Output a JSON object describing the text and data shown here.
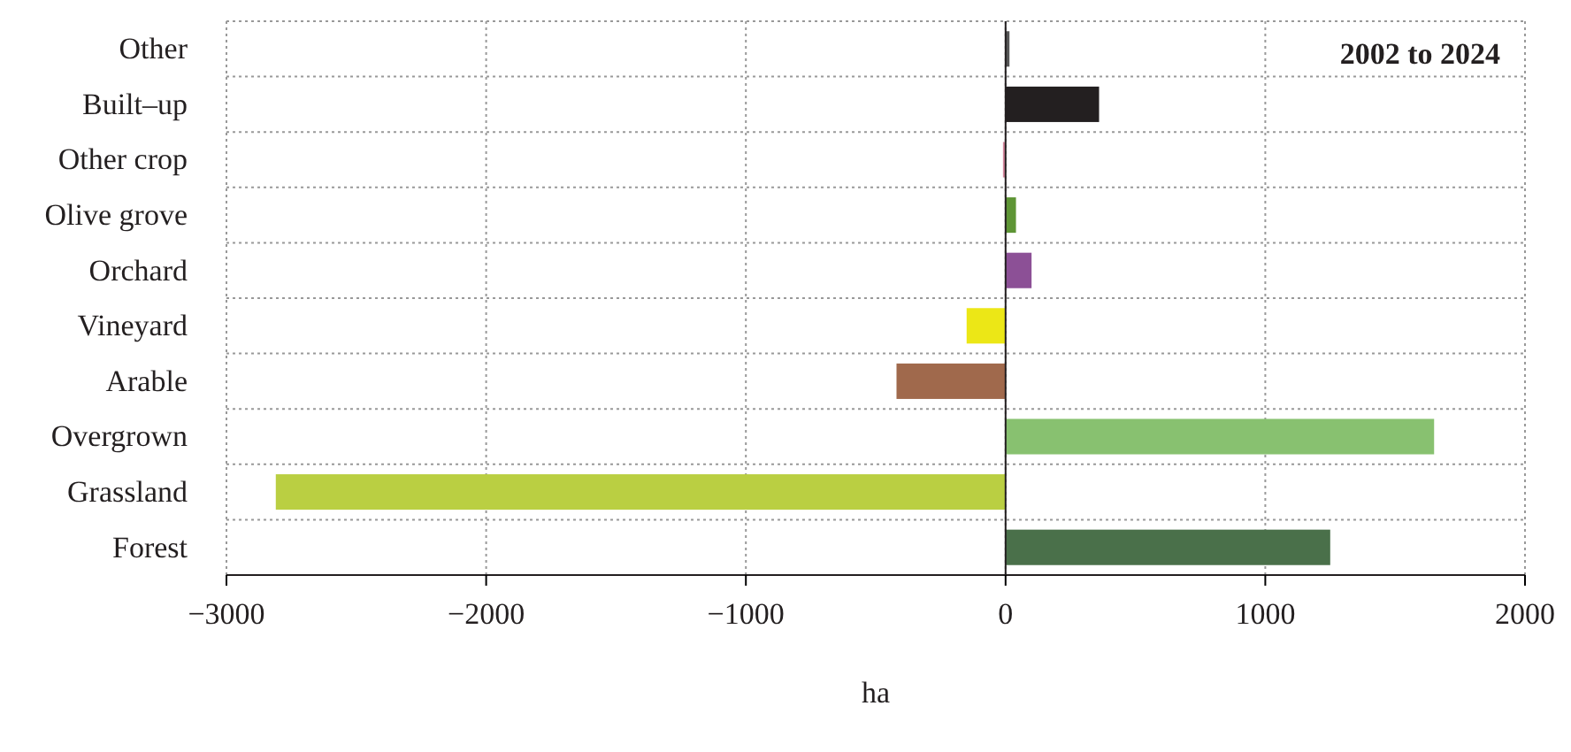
{
  "chart_data": {
    "type": "bar",
    "orientation": "horizontal",
    "categories": [
      "Other",
      "Built–up",
      "Other crop",
      "Olive grove",
      "Orchard",
      "Vineyard",
      "Arable",
      "Overgrown",
      "Grassland",
      "Forest"
    ],
    "values": [
      15,
      360,
      -10,
      40,
      100,
      -150,
      -420,
      1650,
      -2810,
      1250
    ],
    "colors": [
      "#555555",
      "#231f20",
      "#d4869c",
      "#5e9535",
      "#8c5096",
      "#ece716",
      "#a0694c",
      "#88c170",
      "#bacf42",
      "#4a704a"
    ],
    "xlim": [
      -3000,
      2000
    ],
    "xticks": [
      {
        "value": -3000,
        "label": "−3000"
      },
      {
        "value": -2000,
        "label": "−2000"
      },
      {
        "value": -1000,
        "label": "−1000"
      },
      0,
      1000,
      2000
    ],
    "xlabel": "ha",
    "annotations": [
      "2002 to 2024"
    ],
    "grid": true
  }
}
